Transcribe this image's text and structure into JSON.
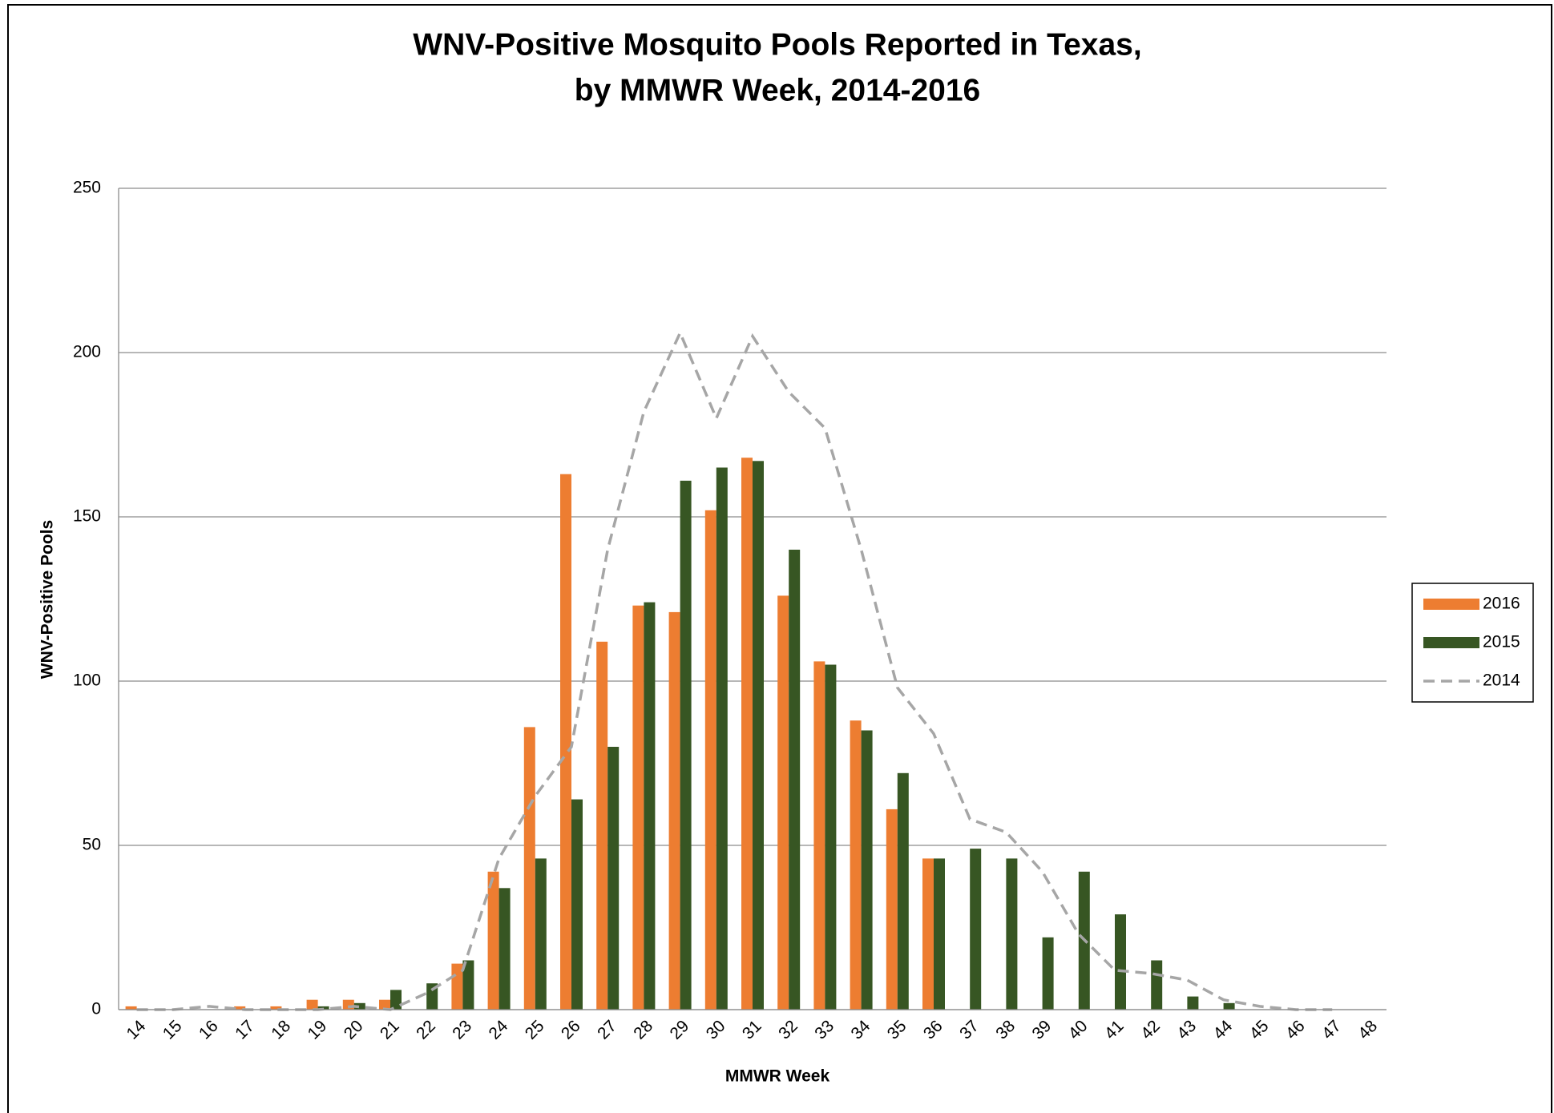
{
  "chart_data": {
    "type": "bar",
    "title": [
      "WNV-Positive Mosquito Pools Reported in Texas,",
      "by MMWR Week, 2014-2016"
    ],
    "x_label": "MMWR Week",
    "y_label": "WNV-Positive Pools",
    "categories": [
      "14",
      "15",
      "16",
      "17",
      "18",
      "19",
      "20",
      "21",
      "22",
      "23",
      "24",
      "25",
      "26",
      "27",
      "28",
      "29",
      "30",
      "31",
      "32",
      "33",
      "34",
      "35",
      "36",
      "37",
      "38",
      "39",
      "40",
      "41",
      "42",
      "43",
      "44",
      "45",
      "46",
      "47",
      "48"
    ],
    "series": [
      {
        "name": "2016",
        "type": "bar",
        "color": "#ed7d31",
        "values": [
          1,
          0,
          0,
          1,
          1,
          3,
          3,
          3,
          0,
          14,
          42,
          86,
          163,
          112,
          123,
          121,
          152,
          168,
          126,
          106,
          88,
          61,
          46,
          null,
          null,
          null,
          null,
          null,
          null,
          null,
          null,
          null,
          null,
          null,
          null
        ]
      },
      {
        "name": "2015",
        "type": "bar",
        "color": "#375623",
        "values": [
          0,
          0,
          0,
          0,
          0,
          1,
          2,
          6,
          8,
          15,
          37,
          46,
          64,
          80,
          124,
          161,
          165,
          167,
          140,
          105,
          85,
          72,
          46,
          49,
          46,
          22,
          42,
          29,
          15,
          4,
          2,
          0,
          0,
          0,
          0
        ]
      },
      {
        "name": "2014",
        "type": "line",
        "color": "#a6a6a6",
        "dashed": true,
        "values": [
          0,
          0,
          1,
          0,
          0,
          0,
          1,
          0,
          5,
          12,
          46,
          65,
          80,
          140,
          182,
          206,
          180,
          205,
          188,
          177,
          140,
          98,
          84,
          58,
          54,
          42,
          23,
          12,
          11,
          9,
          3,
          1,
          0,
          0,
          null
        ]
      }
    ],
    "ylim": [
      0,
      250
    ],
    "yticks": [
      0,
      50,
      100,
      150,
      200,
      250
    ],
    "grid": true,
    "legend": "right"
  }
}
